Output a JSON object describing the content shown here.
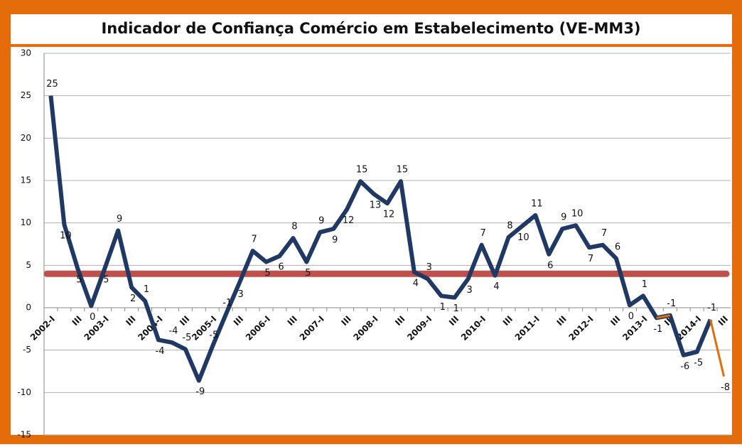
{
  "chart_data": {
    "type": "line",
    "title": "Indicador de Confiança  Comércio em Estabelecimento  (VE-MM3)",
    "categories": [
      "2002-I",
      null,
      "III",
      null,
      "2003-I",
      null,
      "III",
      null,
      "2004-I",
      null,
      "III",
      null,
      "2005-I",
      null,
      "III",
      null,
      "2006-I",
      null,
      "III",
      null,
      "2007-I",
      null,
      "III",
      null,
      "2008-I",
      null,
      "III",
      null,
      "2009-I",
      null,
      "III",
      null,
      "2010-I",
      null,
      "III",
      null,
      "2011-I",
      null,
      "III",
      null,
      "2012-I",
      null,
      "III",
      null,
      "2013-I",
      null,
      "III",
      null,
      "2014-I",
      null,
      "III"
    ],
    "series": [
      {
        "color": "#1f3864",
        "values": [
          25,
          9.8,
          4.6,
          0.2,
          4.6,
          9.1,
          2.4,
          0.8,
          -3.8,
          -4.1,
          -4.9,
          -8.6,
          -4.6,
          -0.8,
          2.9,
          6.7,
          5.4,
          6.1,
          8.2,
          5.4,
          8.9,
          9.3,
          11.6,
          14.9,
          13.4,
          12.3,
          14.9,
          4.2,
          3.4,
          1.4,
          1.2,
          3.4,
          7.4,
          3.8,
          8.3,
          9.6,
          10.9,
          6.3,
          9.3,
          9.7,
          7.1,
          7.4,
          5.8,
          0.3,
          1.4,
          -1.2,
          -0.9,
          -5.6,
          -5.2,
          -1.4,
          null
        ],
        "value_labels": [
          "25",
          "10",
          "5",
          "0",
          "5",
          "9",
          "2",
          "1",
          "-4",
          "-4",
          "-5",
          "-9",
          "-5",
          "-1",
          "3",
          "7",
          "5",
          "6",
          "8",
          "5",
          "9",
          "9",
          "12",
          "15",
          "13",
          "12",
          "15",
          "4",
          "3",
          "1",
          "1",
          "3",
          "7",
          "4",
          "8",
          "10",
          "11",
          "6",
          "9",
          "10",
          "7",
          "7",
          "6",
          "0",
          "1",
          "-1",
          "-1",
          "-6",
          "-5",
          "-1",
          null
        ]
      },
      {
        "color": "#e36c09",
        "values": [
          null,
          null,
          null,
          null,
          null,
          null,
          null,
          null,
          null,
          null,
          null,
          null,
          null,
          null,
          null,
          null,
          null,
          null,
          null,
          null,
          null,
          null,
          null,
          null,
          null,
          null,
          null,
          null,
          null,
          null,
          null,
          null,
          null,
          null,
          null,
          null,
          null,
          null,
          null,
          null,
          null,
          null,
          null,
          null,
          null,
          -1.2,
          -0.9,
          null,
          null,
          -1.4,
          -8.1
        ],
        "value_labels": [
          null,
          null,
          null,
          null,
          null,
          null,
          null,
          null,
          null,
          null,
          null,
          null,
          null,
          null,
          null,
          null,
          null,
          null,
          null,
          null,
          null,
          null,
          null,
          null,
          null,
          null,
          null,
          null,
          null,
          null,
          null,
          null,
          null,
          null,
          null,
          null,
          null,
          null,
          null,
          null,
          null,
          null,
          null,
          null,
          null,
          null,
          null,
          null,
          null,
          null,
          "-8"
        ]
      }
    ],
    "reference_line": {
      "value": 4,
      "color": "#c0504d"
    },
    "ylim": [
      -15,
      30
    ],
    "yticks": [
      -15,
      -10,
      -5,
      0,
      5,
      10,
      15,
      20,
      25,
      30
    ],
    "grid": true
  }
}
